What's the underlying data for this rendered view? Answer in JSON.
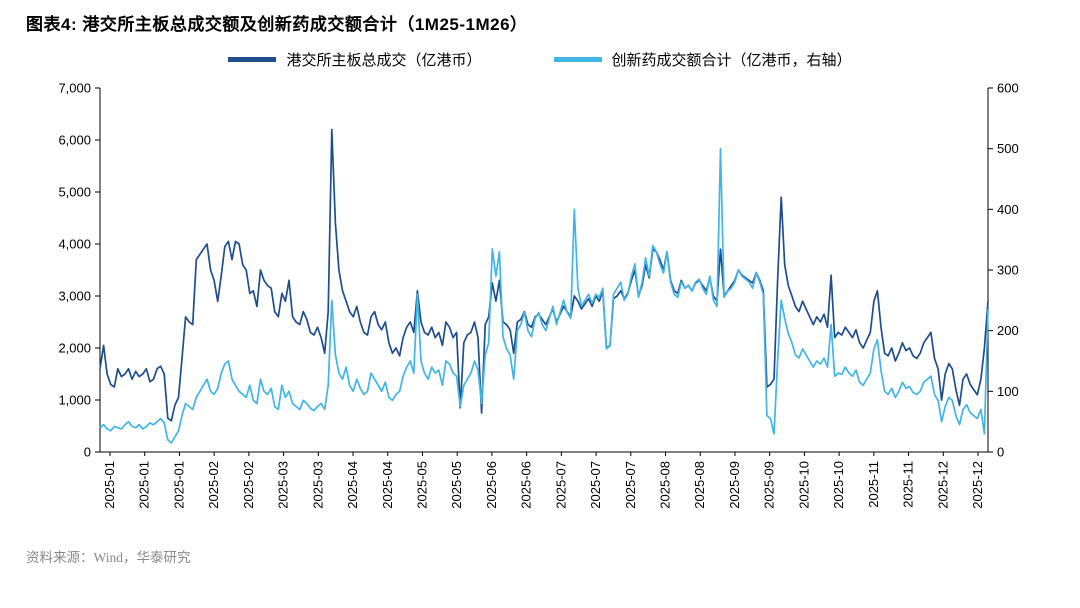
{
  "header": {
    "title": "图表4:  港交所主板总成交额及创新药成交额合计（1M25-1M26）"
  },
  "footer": {
    "source": "资料来源：Wind，华泰研究"
  },
  "colors": {
    "dark_blue": "#1F4E8C",
    "light_blue": "#41B6E6"
  },
  "chart_data": {
    "type": "line",
    "title": "港交所主板总成交额及创新药成交额合计（1M25-1M26）",
    "grid": false,
    "legend_position": "top",
    "left_axis": {
      "min": 0,
      "max": 7000,
      "step": 1000
    },
    "right_axis": {
      "min": 0,
      "max": 600,
      "step": 100
    },
    "x_tick_labels": [
      "2025-01",
      "2025-01",
      "2025-01",
      "2025-02",
      "2025-02",
      "2025-03",
      "2025-03",
      "2025-04",
      "2025-04",
      "2025-05",
      "2025-05",
      "2025-06",
      "2025-06",
      "2025-07",
      "2025-07",
      "2025-07",
      "2025-08",
      "2025-08",
      "2025-09",
      "2025-09",
      "2025-10",
      "2025-10",
      "2025-11",
      "2025-11",
      "2025-12",
      "2025-12"
    ],
    "series": [
      {
        "name": "港交所主板总成交（亿港币）",
        "axis": "left",
        "color": "#1F4E8C",
        "values": [
          1600,
          2050,
          1500,
          1300,
          1250,
          1600,
          1450,
          1500,
          1600,
          1400,
          1550,
          1450,
          1500,
          1600,
          1350,
          1400,
          1600,
          1650,
          1500,
          650,
          600,
          900,
          1050,
          1800,
          2600,
          2500,
          2450,
          3700,
          3800,
          3900,
          4000,
          3500,
          3300,
          2900,
          3400,
          3950,
          4050,
          3700,
          4050,
          4000,
          3600,
          3500,
          3050,
          3100,
          2800,
          3500,
          3300,
          3200,
          3150,
          2700,
          2600,
          3050,
          2900,
          3300,
          2600,
          2500,
          2450,
          2700,
          2550,
          2300,
          2250,
          2400,
          2200,
          1900,
          2700,
          6200,
          4400,
          3500,
          3100,
          2900,
          2700,
          2600,
          2800,
          2500,
          2300,
          2250,
          2600,
          2700,
          2450,
          2350,
          2500,
          2100,
          1900,
          2000,
          1850,
          2200,
          2400,
          2500,
          2300,
          3100,
          2500,
          2300,
          2250,
          2400,
          2200,
          2300,
          2050,
          2500,
          2400,
          2200,
          2300,
          850,
          2100,
          2250,
          2300,
          2500,
          2200,
          750,
          2450,
          2600,
          3250,
          2900,
          3300,
          2500,
          2450,
          2350,
          1900,
          2500,
          2550,
          2700,
          2450,
          2400,
          2600,
          2650,
          2550,
          2450,
          2600,
          2750,
          2500,
          2650,
          2800,
          2700,
          2600,
          3000,
          2900,
          2750,
          2850,
          2950,
          2800,
          3000,
          2900,
          3100,
          2000,
          2050,
          2950,
          3000,
          3100,
          2950,
          3050,
          3300,
          3500,
          3000,
          3200,
          3600,
          3350,
          3900,
          3850,
          3700,
          3500,
          3850,
          3300,
          3100,
          3050,
          3300,
          3150,
          3200,
          3100,
          3250,
          3300,
          3200,
          3100,
          3350,
          3000,
          2900,
          3900,
          3000,
          3100,
          3200,
          3300,
          3500,
          3400,
          3350,
          3300,
          3250,
          3450,
          3300,
          3100,
          1250,
          1300,
          1400,
          3300,
          4900,
          3600,
          3200,
          3000,
          2800,
          2700,
          2900,
          2750,
          2600,
          2450,
          2600,
          2500,
          2650,
          2400,
          3400,
          2200,
          2300,
          2250,
          2400,
          2300,
          2200,
          2350,
          2100,
          2000,
          2150,
          2300,
          2900,
          3100,
          2400,
          1900,
          1850,
          2000,
          1750,
          1900,
          2100,
          1950,
          2000,
          1850,
          1800,
          1900,
          2100,
          2200,
          2300,
          1800,
          1600,
          1000,
          1500,
          1700,
          1600,
          1200,
          900,
          1400,
          1500,
          1300,
          1200,
          1100,
          1400,
          2000,
          2900
        ]
      },
      {
        "name": "创新药成交额合计（亿港币，右轴）",
        "axis": "right",
        "color": "#41B6E6",
        "values": [
          40,
          45,
          38,
          35,
          42,
          40,
          38,
          45,
          50,
          42,
          40,
          45,
          38,
          42,
          48,
          45,
          50,
          55,
          48,
          20,
          15,
          25,
          35,
          60,
          80,
          75,
          70,
          90,
          100,
          110,
          120,
          100,
          95,
          105,
          130,
          145,
          150,
          120,
          110,
          100,
          95,
          90,
          110,
          85,
          80,
          120,
          100,
          95,
          105,
          75,
          70,
          110,
          90,
          100,
          80,
          75,
          70,
          85,
          80,
          72,
          68,
          75,
          80,
          70,
          110,
          250,
          160,
          130,
          120,
          140,
          110,
          100,
          120,
          105,
          95,
          100,
          130,
          120,
          110,
          100,
          115,
          90,
          85,
          95,
          100,
          125,
          140,
          150,
          130,
          260,
          150,
          130,
          120,
          140,
          130,
          135,
          110,
          150,
          145,
          130,
          125,
          75,
          110,
          120,
          130,
          150,
          135,
          80,
          160,
          180,
          335,
          290,
          330,
          190,
          170,
          160,
          120,
          200,
          210,
          230,
          200,
          190,
          220,
          230,
          210,
          200,
          220,
          240,
          210,
          230,
          250,
          230,
          220,
          400,
          270,
          240,
          250,
          260,
          245,
          260,
          255,
          270,
          170,
          175,
          260,
          270,
          280,
          250,
          260,
          290,
          310,
          255,
          280,
          320,
          290,
          340,
          330,
          310,
          295,
          330,
          280,
          260,
          255,
          280,
          270,
          275,
          265,
          280,
          285,
          270,
          260,
          290,
          250,
          240,
          500,
          255,
          265,
          270,
          280,
          300,
          290,
          285,
          280,
          270,
          295,
          280,
          260,
          60,
          55,
          30,
          150,
          250,
          220,
          195,
          180,
          160,
          155,
          170,
          160,
          150,
          140,
          150,
          145,
          155,
          140,
          210,
          125,
          130,
          128,
          140,
          130,
          125,
          135,
          115,
          110,
          120,
          130,
          170,
          185,
          135,
          100,
          95,
          105,
          90,
          100,
          115,
          105,
          108,
          98,
          95,
          100,
          115,
          120,
          125,
          95,
          85,
          50,
          75,
          90,
          85,
          60,
          45,
          70,
          78,
          65,
          60,
          55,
          70,
          30,
          235
        ]
      }
    ]
  }
}
